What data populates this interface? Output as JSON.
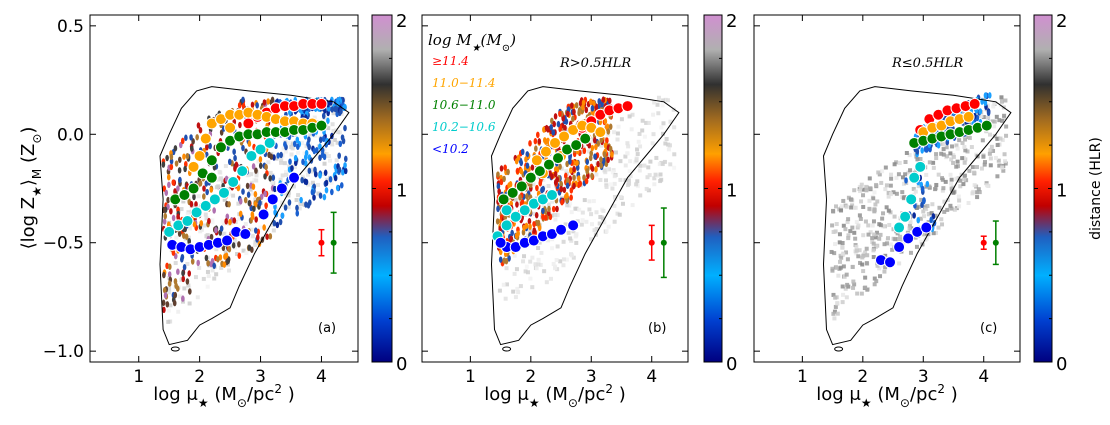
{
  "chart_data": [
    {
      "type": "scatter",
      "panel_label": "(a)",
      "annotation": "",
      "xlabel_pre": "log μ",
      "xlabel_sub": "★",
      "xlabel_post": " (M",
      "xlabel_sub2": "⊙",
      "xlabel_end": "/pc",
      "xlabel_sup": "2",
      "xlabel_close": " )",
      "ylabel_parts": [
        "⟨log Z",
        "★",
        "⟩",
        "M",
        " (Z",
        "⊙",
        ")"
      ],
      "xlim": [
        0.2,
        4.6
      ],
      "ylim": [
        -1.05,
        0.55
      ],
      "xticks": [
        1,
        2,
        3,
        4
      ],
      "yticks": [
        -1.0,
        -0.5,
        0.0,
        0.5
      ],
      "ytick_labels": [
        "−1.0",
        "−0.5",
        "0.0",
        "0.5"
      ],
      "colorbar": {
        "min": 0,
        "max": 2,
        "ticks": [
          "0",
          "1",
          "2"
        ],
        "label": ""
      },
      "contour": [
        [
          1.4,
          -0.9
        ],
        [
          1.35,
          -0.6
        ],
        [
          1.4,
          -0.3
        ],
        [
          1.35,
          -0.1
        ],
        [
          1.5,
          0.0
        ],
        [
          1.7,
          0.12
        ],
        [
          1.95,
          0.2
        ],
        [
          2.2,
          0.22
        ],
        [
          2.8,
          0.2
        ],
        [
          3.5,
          0.18
        ],
        [
          4.2,
          0.15
        ],
        [
          4.45,
          0.1
        ],
        [
          4.2,
          0.0
        ],
        [
          3.9,
          -0.1
        ],
        [
          3.6,
          -0.2
        ],
        [
          3.4,
          -0.3
        ],
        [
          3.1,
          -0.45
        ],
        [
          2.9,
          -0.55
        ],
        [
          2.65,
          -0.7
        ],
        [
          2.5,
          -0.8
        ],
        [
          2.2,
          -0.85
        ],
        [
          2.0,
          -0.88
        ],
        [
          1.8,
          -0.95
        ],
        [
          1.5,
          -0.97
        ],
        [
          1.4,
          -0.9
        ]
      ],
      "series": [
        {
          "name": "≥11.4",
          "color": "#ff0000",
          "points": [
            [
              2.95,
              0.08
            ],
            [
              3.1,
              0.1
            ],
            [
              3.25,
              0.12
            ],
            [
              3.4,
              0.13
            ],
            [
              3.55,
              0.13
            ],
            [
              3.7,
              0.14
            ],
            [
              3.85,
              0.14
            ],
            [
              4.0,
              0.14
            ],
            [
              2.8,
              0.05
            ]
          ]
        },
        {
          "name": "11.0−11.4",
          "color": "#ffa500",
          "points": [
            [
              2.2,
              0.05
            ],
            [
              2.35,
              0.07
            ],
            [
              2.5,
              0.09
            ],
            [
              2.65,
              0.09
            ],
            [
              2.8,
              0.1
            ],
            [
              2.95,
              0.09
            ],
            [
              3.1,
              0.08
            ],
            [
              3.25,
              0.07
            ],
            [
              3.4,
              0.06
            ],
            [
              3.55,
              0.06
            ],
            [
              3.7,
              0.05
            ],
            [
              3.85,
              0.05
            ],
            [
              2.1,
              -0.02
            ],
            [
              2.0,
              -0.1
            ],
            [
              1.9,
              -0.15
            ],
            [
              2.5,
              0.03
            ]
          ]
        },
        {
          "name": "10.6−11.0",
          "color": "#008000",
          "points": [
            [
              1.6,
              -0.3
            ],
            [
              1.75,
              -0.28
            ],
            [
              1.9,
              -0.25
            ],
            [
              2.05,
              -0.18
            ],
            [
              2.2,
              -0.12
            ],
            [
              2.35,
              -0.06
            ],
            [
              2.5,
              -0.03
            ],
            [
              2.65,
              -0.01
            ],
            [
              2.8,
              0.0
            ],
            [
              2.95,
              0.0
            ],
            [
              3.1,
              0.01
            ],
            [
              3.25,
              0.01
            ],
            [
              3.4,
              0.01
            ],
            [
              3.55,
              0.02
            ],
            [
              3.7,
              0.02
            ],
            [
              3.85,
              0.03
            ],
            [
              4.0,
              0.04
            ],
            [
              2.2,
              -0.2
            ]
          ]
        },
        {
          "name": "10.2−10.6",
          "color": "#00cccc",
          "points": [
            [
              1.5,
              -0.45
            ],
            [
              1.65,
              -0.42
            ],
            [
              1.8,
              -0.4
            ],
            [
              1.95,
              -0.36
            ],
            [
              2.1,
              -0.33
            ],
            [
              2.25,
              -0.3
            ],
            [
              2.4,
              -0.27
            ],
            [
              2.55,
              -0.22
            ],
            [
              2.7,
              -0.17
            ],
            [
              2.85,
              -0.1
            ],
            [
              3.0,
              -0.07
            ],
            [
              3.15,
              -0.04
            ]
          ]
        },
        {
          "name": "<10.2",
          "color": "#0000ff",
          "points": [
            [
              1.55,
              -0.51
            ],
            [
              1.7,
              -0.52
            ],
            [
              1.85,
              -0.53
            ],
            [
              2.0,
              -0.52
            ],
            [
              2.15,
              -0.51
            ],
            [
              2.3,
              -0.5
            ],
            [
              2.45,
              -0.49
            ],
            [
              2.6,
              -0.45
            ],
            [
              2.75,
              -0.46
            ],
            [
              3.05,
              -0.37
            ],
            [
              3.2,
              -0.3
            ],
            [
              3.35,
              -0.25
            ],
            [
              3.55,
              -0.2
            ]
          ]
        }
      ],
      "error_bars": [
        {
          "x": 4.0,
          "y": -0.5,
          "err": 0.06,
          "color": "#ff0000"
        },
        {
          "x": 4.2,
          "y": -0.5,
          "err": 0.14,
          "color": "#008000"
        }
      ]
    },
    {
      "type": "scatter",
      "panel_label": "(b)",
      "annotation": "R>0.5HLR",
      "legend_title_pre": "log M",
      "legend_title_sub": "★",
      "legend_title_post": "(M",
      "legend_title_sub2": "⊙",
      "legend_title_end": ")",
      "xlim": [
        0.2,
        4.6
      ],
      "ylim": [
        -1.05,
        0.55
      ],
      "xticks": [
        1,
        2,
        3,
        4
      ],
      "yticks": [
        -1.0,
        -0.5,
        0.0,
        0.5
      ],
      "colorbar": {
        "min": 0,
        "max": 2,
        "ticks": [
          "0",
          "1",
          "2"
        ],
        "label": ""
      },
      "contour": [
        [
          1.4,
          -0.9
        ],
        [
          1.35,
          -0.6
        ],
        [
          1.4,
          -0.3
        ],
        [
          1.35,
          -0.1
        ],
        [
          1.5,
          0.0
        ],
        [
          1.7,
          0.12
        ],
        [
          1.95,
          0.2
        ],
        [
          2.2,
          0.22
        ],
        [
          2.8,
          0.2
        ],
        [
          3.5,
          0.18
        ],
        [
          4.2,
          0.15
        ],
        [
          4.45,
          0.1
        ],
        [
          4.2,
          0.0
        ],
        [
          3.9,
          -0.1
        ],
        [
          3.6,
          -0.2
        ],
        [
          3.4,
          -0.3
        ],
        [
          3.1,
          -0.45
        ],
        [
          2.9,
          -0.55
        ],
        [
          2.65,
          -0.7
        ],
        [
          2.5,
          -0.8
        ],
        [
          2.2,
          -0.85
        ],
        [
          2.0,
          -0.88
        ],
        [
          1.8,
          -0.95
        ],
        [
          1.5,
          -0.97
        ],
        [
          1.4,
          -0.9
        ]
      ],
      "series": [
        {
          "name": "≥11.4",
          "color": "#ff0000",
          "points": [
            [
              3.0,
              0.06
            ],
            [
              3.15,
              0.09
            ],
            [
              3.3,
              0.11
            ],
            [
              3.45,
              0.12
            ],
            [
              3.6,
              0.13
            ],
            [
              2.85,
              0.03
            ]
          ]
        },
        {
          "name": "11.0−11.4",
          "color": "#ffa500",
          "points": [
            [
              2.1,
              -0.12
            ],
            [
              2.25,
              -0.08
            ],
            [
              2.4,
              -0.04
            ],
            [
              2.55,
              -0.01
            ],
            [
              2.7,
              0.02
            ],
            [
              2.85,
              0.04
            ],
            [
              3.0,
              0.03
            ],
            [
              3.15,
              0.01
            ],
            [
              2.2,
              -0.18
            ],
            [
              2.0,
              -0.2
            ],
            [
              2.5,
              -0.1
            ]
          ]
        },
        {
          "name": "10.6−11.0",
          "color": "#008000",
          "points": [
            [
              1.55,
              -0.3
            ],
            [
              1.7,
              -0.27
            ],
            [
              1.85,
              -0.24
            ],
            [
              2.0,
              -0.2
            ],
            [
              2.15,
              -0.17
            ],
            [
              2.3,
              -0.14
            ],
            [
              2.45,
              -0.11
            ],
            [
              2.6,
              -0.07
            ],
            [
              2.75,
              -0.05
            ],
            [
              2.9,
              -0.02
            ]
          ]
        },
        {
          "name": "10.2−10.6",
          "color": "#00cccc",
          "points": [
            [
              1.45,
              -0.47
            ],
            [
              1.6,
              -0.42
            ],
            [
              1.75,
              -0.38
            ],
            [
              1.9,
              -0.35
            ],
            [
              2.05,
              -0.32
            ],
            [
              2.2,
              -0.3
            ],
            [
              2.35,
              -0.28
            ],
            [
              1.6,
              -0.35
            ]
          ]
        },
        {
          "name": "<10.2",
          "color": "#0000ff",
          "points": [
            [
              1.6,
              -0.52
            ],
            [
              1.75,
              -0.52
            ],
            [
              1.9,
              -0.5
            ],
            [
              2.05,
              -0.49
            ],
            [
              2.2,
              -0.47
            ],
            [
              2.35,
              -0.46
            ],
            [
              2.5,
              -0.44
            ],
            [
              2.7,
              -0.42
            ],
            [
              1.5,
              -0.5
            ]
          ]
        }
      ],
      "error_bars": [
        {
          "x": 4.0,
          "y": -0.5,
          "err": 0.08,
          "color": "#ff0000"
        },
        {
          "x": 4.2,
          "y": -0.5,
          "err": 0.16,
          "color": "#008000"
        }
      ]
    },
    {
      "type": "scatter",
      "panel_label": "(c)",
      "annotation": "R≤0.5HLR",
      "xlim": [
        0.2,
        4.6
      ],
      "ylim": [
        -1.05,
        0.55
      ],
      "xticks": [
        1,
        2,
        3,
        4
      ],
      "yticks": [
        -1.0,
        -0.5,
        0.0,
        0.5
      ],
      "colorbar": {
        "min": 0,
        "max": 2,
        "ticks": [
          "0",
          "1",
          "2"
        ],
        "label": "distance (HLR)"
      },
      "contour": [
        [
          1.4,
          -0.9
        ],
        [
          1.35,
          -0.6
        ],
        [
          1.4,
          -0.3
        ],
        [
          1.35,
          -0.1
        ],
        [
          1.5,
          0.0
        ],
        [
          1.7,
          0.12
        ],
        [
          1.95,
          0.2
        ],
        [
          2.2,
          0.22
        ],
        [
          2.8,
          0.2
        ],
        [
          3.5,
          0.18
        ],
        [
          4.2,
          0.15
        ],
        [
          4.45,
          0.1
        ],
        [
          4.2,
          0.0
        ],
        [
          3.9,
          -0.1
        ],
        [
          3.6,
          -0.2
        ],
        [
          3.4,
          -0.3
        ],
        [
          3.1,
          -0.45
        ],
        [
          2.9,
          -0.55
        ],
        [
          2.65,
          -0.7
        ],
        [
          2.5,
          -0.8
        ],
        [
          2.2,
          -0.85
        ],
        [
          2.0,
          -0.88
        ],
        [
          1.8,
          -0.95
        ],
        [
          1.5,
          -0.97
        ],
        [
          1.4,
          -0.9
        ]
      ],
      "series": [
        {
          "name": "≥11.4",
          "color": "#ff0000",
          "points": [
            [
              2.95,
              0.02
            ],
            [
              3.1,
              0.07
            ],
            [
              3.25,
              0.09
            ],
            [
              3.4,
              0.11
            ],
            [
              3.55,
              0.12
            ],
            [
              3.7,
              0.13
            ],
            [
              3.85,
              0.14
            ]
          ]
        },
        {
          "name": "11.0−11.4",
          "color": "#ffa500",
          "points": [
            [
              3.0,
              0.01
            ],
            [
              3.15,
              0.03
            ],
            [
              3.3,
              0.04
            ],
            [
              3.45,
              0.06
            ],
            [
              3.6,
              0.07
            ],
            [
              3.75,
              0.08
            ]
          ]
        },
        {
          "name": "10.6−11.0",
          "color": "#008000",
          "points": [
            [
              2.85,
              -0.04
            ],
            [
              3.0,
              -0.03
            ],
            [
              3.15,
              -0.02
            ],
            [
              3.3,
              -0.01
            ],
            [
              3.45,
              0.0
            ],
            [
              3.6,
              0.01
            ],
            [
              3.75,
              0.02
            ],
            [
              3.9,
              0.03
            ],
            [
              4.05,
              0.04
            ]
          ]
        },
        {
          "name": "10.2−10.6",
          "color": "#00cccc",
          "points": [
            [
              2.95,
              -0.15
            ],
            [
              2.85,
              -0.2
            ],
            [
              2.8,
              -0.3
            ],
            [
              2.7,
              -0.38
            ],
            [
              2.6,
              -0.43
            ]
          ]
        },
        {
          "name": "<10.2",
          "color": "#0000ff",
          "points": [
            [
              2.3,
              -0.58
            ],
            [
              2.45,
              -0.59
            ],
            [
              2.6,
              -0.52
            ],
            [
              2.75,
              -0.48
            ],
            [
              2.9,
              -0.45
            ],
            [
              3.05,
              -0.43
            ]
          ]
        }
      ],
      "error_bars": [
        {
          "x": 4.0,
          "y": -0.5,
          "err": 0.03,
          "color": "#ff0000"
        },
        {
          "x": 4.2,
          "y": -0.5,
          "err": 0.1,
          "color": "#008000"
        }
      ]
    }
  ]
}
